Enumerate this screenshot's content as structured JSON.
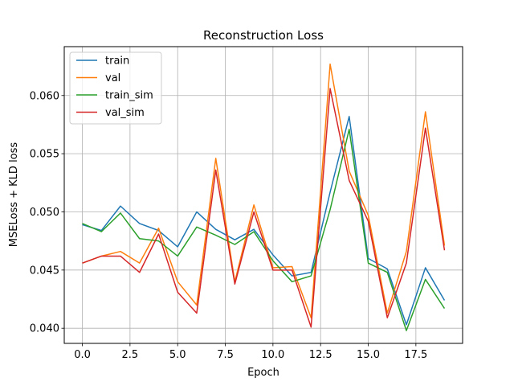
{
  "chart_data": {
    "type": "line",
    "title": "Reconstruction Loss",
    "xlabel": "Epoch",
    "ylabel": "MSELoss + KLD loss",
    "xlim": [
      -0.95,
      19.95
    ],
    "ylim": [
      0.0387,
      0.0642
    ],
    "xticks": [
      0.0,
      2.5,
      5.0,
      7.5,
      10.0,
      12.5,
      15.0,
      17.5
    ],
    "xtick_labels": [
      "0.0",
      "2.5",
      "5.0",
      "7.5",
      "10.0",
      "12.5",
      "15.0",
      "17.5"
    ],
    "yticks": [
      0.04,
      0.045,
      0.05,
      0.055,
      0.06
    ],
    "ytick_labels": [
      "0.040",
      "0.045",
      "0.050",
      "0.055",
      "0.060"
    ],
    "grid": true,
    "legend_position": "top-left",
    "x": [
      0,
      1,
      2,
      3,
      4,
      5,
      6,
      7,
      8,
      9,
      10,
      11,
      12,
      13,
      14,
      15,
      16,
      17,
      18,
      19
    ],
    "series": [
      {
        "name": "train",
        "color": "#1f77b4",
        "values": [
          0.0489,
          0.0484,
          0.0505,
          0.049,
          0.0484,
          0.047,
          0.05,
          0.0485,
          0.0476,
          0.0485,
          0.0463,
          0.0445,
          0.0448,
          0.0517,
          0.0582,
          0.046,
          0.0451,
          0.0403,
          0.0452,
          0.0424
        ]
      },
      {
        "name": "val",
        "color": "#ff7f0e",
        "values": [
          0.0456,
          0.0462,
          0.0466,
          0.0456,
          0.0486,
          0.044,
          0.042,
          0.0546,
          0.044,
          0.0506,
          0.0452,
          0.0453,
          0.0409,
          0.0627,
          0.0535,
          0.0497,
          0.0413,
          0.0466,
          0.0586,
          0.0471
        ]
      },
      {
        "name": "train_sim",
        "color": "#2ca02c",
        "values": [
          0.049,
          0.0483,
          0.0499,
          0.0477,
          0.0475,
          0.0462,
          0.0487,
          0.048,
          0.0472,
          0.0483,
          0.0458,
          0.044,
          0.0445,
          0.0502,
          0.0571,
          0.0456,
          0.0448,
          0.0398,
          0.0442,
          0.0417
        ]
      },
      {
        "name": "val_sim",
        "color": "#d62728",
        "values": [
          0.0456,
          0.0462,
          0.0462,
          0.0448,
          0.0481,
          0.0431,
          0.0413,
          0.0536,
          0.0438,
          0.05,
          0.045,
          0.045,
          0.0401,
          0.0606,
          0.0527,
          0.0492,
          0.0409,
          0.0456,
          0.0572,
          0.0467
        ]
      }
    ]
  }
}
